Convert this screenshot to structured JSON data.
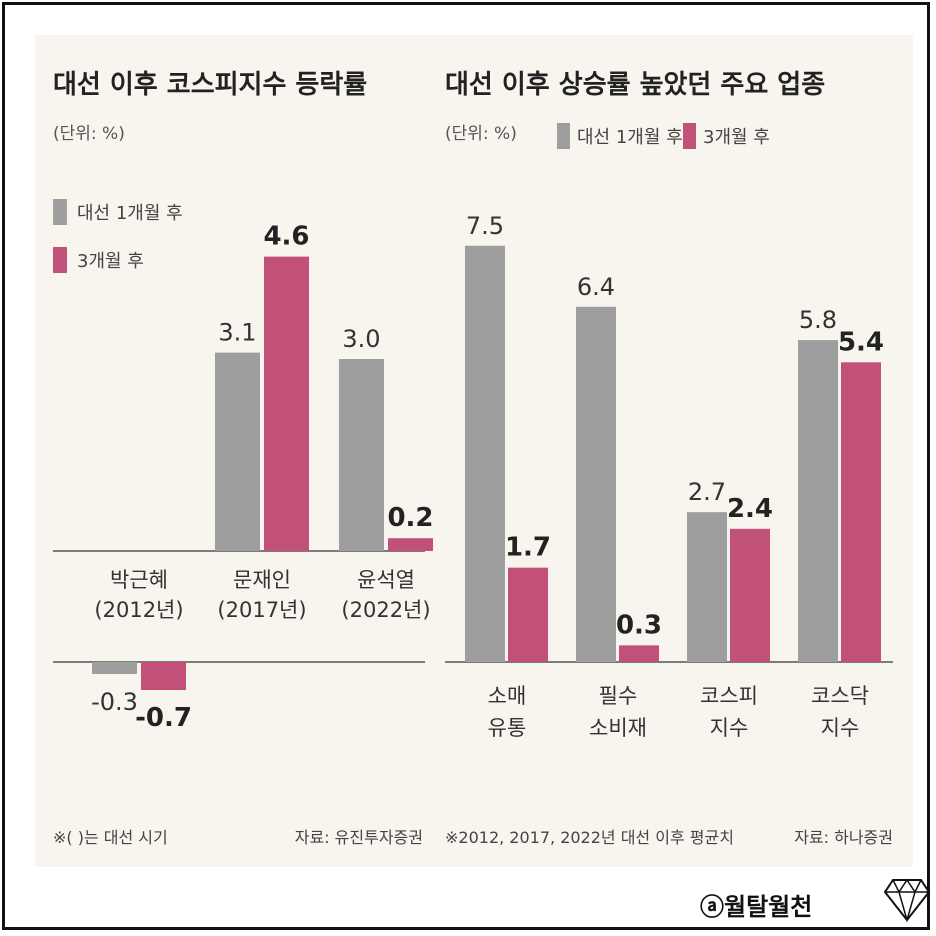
{
  "colors": {
    "gray": "#9e9e9e",
    "pink": "#c2517a",
    "axis": "#555555",
    "panel_bg": "#f8f5ee"
  },
  "chart_data": [
    {
      "type": "bar",
      "title": "대선 이후 코스피지수 등락률",
      "unit": "(단위: %)",
      "categories": [
        {
          "line1": "박근혜",
          "line2": "(2012년)"
        },
        {
          "line1": "문재인",
          "line2": "(2017년)"
        },
        {
          "line1": "윤석열",
          "line2": "(2022년)"
        }
      ],
      "series": [
        {
          "name": "대선 1개월 후",
          "values": [
            -0.3,
            3.1,
            3.0
          ],
          "labels": [
            "-0.3",
            "3.1",
            "3.0"
          ]
        },
        {
          "name": "3개월 후",
          "values": [
            -0.7,
            4.6,
            0.2
          ],
          "labels": [
            "-0.7",
            "4.6",
            "0.2"
          ]
        }
      ],
      "note": "※( )는 대선 시기",
      "source": "자료: 유진투자증권"
    },
    {
      "type": "bar",
      "title": "대선 이후 상승률 높았던 주요 업종",
      "unit": "(단위: %)",
      "categories": [
        {
          "line1": "소매",
          "line2": "유통"
        },
        {
          "line1": "필수",
          "line2": "소비재"
        },
        {
          "line1": "코스피",
          "line2": "지수"
        },
        {
          "line1": "코스닥",
          "line2": "지수"
        }
      ],
      "series": [
        {
          "name": "대선 1개월 후",
          "values": [
            7.5,
            6.4,
            2.7,
            5.8
          ],
          "labels": [
            "7.5",
            "6.4",
            "2.7",
            "5.8"
          ]
        },
        {
          "name": "3개월 후",
          "values": [
            1.7,
            0.3,
            2.4,
            5.4
          ],
          "labels": [
            "1.7",
            "0.3",
            "2.4",
            "5.4"
          ]
        }
      ],
      "note": "※2012, 2017, 2022년 대선 이후 평균치",
      "source": "자료: 하나증권"
    }
  ],
  "credit": {
    "text": "ⓐ월탈월천",
    "icon": "diamond-icon"
  }
}
